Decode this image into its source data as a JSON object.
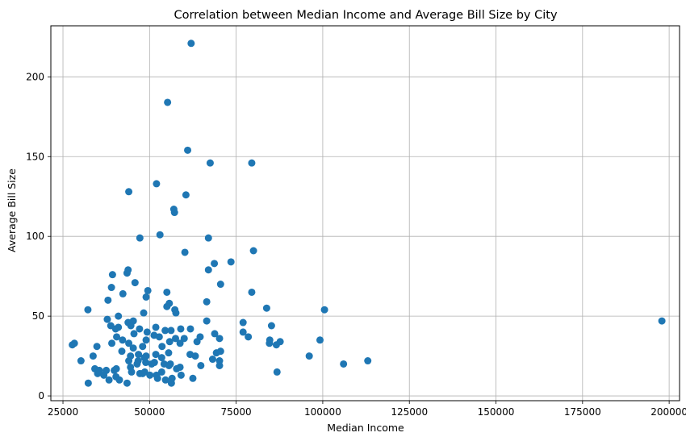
{
  "chart_data": {
    "type": "scatter",
    "title": "Correlation between Median Income and Average Bill Size by City",
    "xlabel": "Median Income",
    "ylabel": "Average Bill Size",
    "xlim": [
      21500,
      203000
    ],
    "ylim": [
      -3,
      232
    ],
    "grid": true,
    "point_color": "#1f77b4",
    "x_ticks": [
      25000,
      50000,
      75000,
      100000,
      125000,
      150000,
      175000,
      200000
    ],
    "x_tick_labels": [
      "25000",
      "50000",
      "75000",
      "100000",
      "125000",
      "150000",
      "175000",
      "200000"
    ],
    "y_ticks": [
      0,
      50,
      100,
      150,
      200
    ],
    "y_tick_labels": [
      "0",
      "50",
      "100",
      "150",
      "200"
    ],
    "points": [
      [
        62000,
        221
      ],
      [
        55200,
        184
      ],
      [
        61000,
        154
      ],
      [
        67500,
        146
      ],
      [
        79500,
        146
      ],
      [
        44000,
        128
      ],
      [
        52000,
        133
      ],
      [
        60500,
        126
      ],
      [
        57000,
        117
      ],
      [
        57200,
        115
      ],
      [
        53000,
        101
      ],
      [
        67000,
        99
      ],
      [
        47200,
        99
      ],
      [
        60200,
        90
      ],
      [
        80000,
        91
      ],
      [
        73500,
        84
      ],
      [
        68700,
        83
      ],
      [
        67000,
        79
      ],
      [
        43800,
        79
      ],
      [
        43500,
        77
      ],
      [
        39300,
        76
      ],
      [
        45800,
        71
      ],
      [
        70500,
        70
      ],
      [
        39000,
        68
      ],
      [
        49500,
        66
      ],
      [
        55000,
        65
      ],
      [
        79500,
        65
      ],
      [
        42300,
        64
      ],
      [
        49000,
        62
      ],
      [
        38000,
        60
      ],
      [
        66500,
        59
      ],
      [
        55700,
        58
      ],
      [
        55000,
        56
      ],
      [
        83800,
        55
      ],
      [
        32200,
        54
      ],
      [
        57300,
        54
      ],
      [
        57600,
        52
      ],
      [
        100500,
        54
      ],
      [
        48300,
        52
      ],
      [
        41000,
        50
      ],
      [
        37800,
        48
      ],
      [
        66500,
        47
      ],
      [
        197900,
        47
      ],
      [
        45300,
        47
      ],
      [
        77000,
        46
      ],
      [
        43800,
        46
      ],
      [
        85200,
        44
      ],
      [
        38800,
        44
      ],
      [
        41000,
        43
      ],
      [
        44600,
        44
      ],
      [
        40200,
        42
      ],
      [
        51800,
        43
      ],
      [
        59000,
        42
      ],
      [
        77000,
        40
      ],
      [
        54500,
        41
      ],
      [
        56200,
        41
      ],
      [
        61800,
        42
      ],
      [
        47100,
        42
      ],
      [
        49300,
        40
      ],
      [
        68800,
        39
      ],
      [
        45500,
        39
      ],
      [
        51300,
        38
      ],
      [
        78500,
        37
      ],
      [
        40500,
        37
      ],
      [
        52800,
        37
      ],
      [
        64600,
        37
      ],
      [
        57500,
        36
      ],
      [
        60000,
        36
      ],
      [
        70200,
        36
      ],
      [
        42200,
        35
      ],
      [
        49000,
        35
      ],
      [
        84700,
        35
      ],
      [
        99200,
        35
      ],
      [
        87700,
        34
      ],
      [
        55800,
        34
      ],
      [
        63700,
        34
      ],
      [
        58800,
        33
      ],
      [
        44000,
        33
      ],
      [
        84600,
        33
      ],
      [
        28300,
        33
      ],
      [
        39100,
        33
      ],
      [
        27700,
        32
      ],
      [
        86600,
        32
      ],
      [
        34800,
        31
      ],
      [
        48000,
        31
      ],
      [
        53600,
        31
      ],
      [
        45300,
        30
      ],
      [
        69300,
        27
      ],
      [
        70500,
        28
      ],
      [
        33700,
        25
      ],
      [
        42000,
        28
      ],
      [
        55500,
        27
      ],
      [
        51800,
        26
      ],
      [
        46800,
        26
      ],
      [
        61700,
        26
      ],
      [
        96100,
        25
      ],
      [
        63200,
        25
      ],
      [
        49000,
        25
      ],
      [
        44500,
        25
      ],
      [
        48500,
        24
      ],
      [
        68200,
        23
      ],
      [
        53500,
        24
      ],
      [
        30200,
        22
      ],
      [
        113000,
        22
      ],
      [
        44000,
        22
      ],
      [
        70200,
        22
      ],
      [
        51400,
        21
      ],
      [
        46700,
        22
      ],
      [
        56000,
        20
      ],
      [
        48900,
        21
      ],
      [
        54200,
        20
      ],
      [
        50600,
        20
      ],
      [
        106000,
        20
      ],
      [
        46400,
        20
      ],
      [
        55600,
        19
      ],
      [
        64800,
        19
      ],
      [
        70200,
        19
      ],
      [
        44500,
        18
      ],
      [
        58800,
        18
      ],
      [
        57800,
        17
      ],
      [
        37500,
        16
      ],
      [
        34200,
        17
      ],
      [
        39800,
        16
      ],
      [
        35500,
        16
      ],
      [
        35000,
        14
      ],
      [
        40400,
        17
      ],
      [
        48600,
        15
      ],
      [
        86800,
        15
      ],
      [
        44800,
        15
      ],
      [
        53500,
        15
      ],
      [
        47200,
        14
      ],
      [
        36800,
        13
      ],
      [
        52000,
        13
      ],
      [
        59100,
        13
      ],
      [
        50100,
        13
      ],
      [
        48000,
        14
      ],
      [
        40300,
        12
      ],
      [
        52300,
        11
      ],
      [
        62500,
        11
      ],
      [
        56500,
        11
      ],
      [
        41300,
        10
      ],
      [
        38300,
        10
      ],
      [
        54600,
        10
      ],
      [
        32300,
        8
      ],
      [
        43500,
        8
      ],
      [
        56300,
        8
      ]
    ]
  }
}
